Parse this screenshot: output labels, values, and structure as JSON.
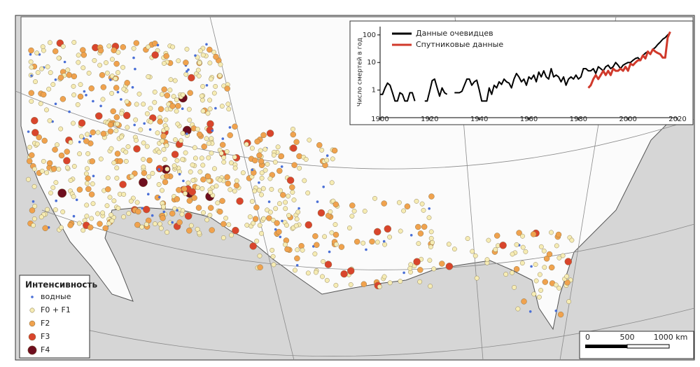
{
  "chart_data": {
    "type": "line",
    "y_label": "Число смертей в год",
    "log_y": true,
    "legend": "top-left",
    "xlim": [
      1900,
      2020
    ],
    "xticks": [
      1900,
      1920,
      1940,
      1960,
      1980,
      2000,
      2020
    ],
    "ylim": [
      0.1,
      200
    ],
    "yticks": [
      1,
      10,
      100
    ],
    "x": [
      1900,
      1901,
      1902,
      1903,
      1904,
      1905,
      1906,
      1907,
      1908,
      1909,
      1910,
      1911,
      1912,
      1913,
      1914,
      1915,
      1916,
      1917,
      1918,
      1919,
      1920,
      1921,
      1922,
      1923,
      1924,
      1925,
      1926,
      1927,
      1928,
      1929,
      1930,
      1931,
      1932,
      1933,
      1934,
      1935,
      1936,
      1937,
      1938,
      1939,
      1940,
      1941,
      1942,
      1943,
      1944,
      1945,
      1946,
      1947,
      1948,
      1949,
      1950,
      1951,
      1952,
      1953,
      1954,
      1955,
      1956,
      1957,
      1958,
      1959,
      1960,
      1961,
      1962,
      1963,
      1964,
      1965,
      1966,
      1967,
      1968,
      1969,
      1970,
      1971,
      1972,
      1973,
      1974,
      1975,
      1976,
      1977,
      1978,
      1979,
      1980,
      1981,
      1982,
      1983,
      1984,
      1985,
      1986,
      1987,
      1988,
      1989,
      1990,
      1991,
      1992,
      1993,
      1994,
      1995,
      1996,
      1997,
      1998,
      1999,
      2000,
      2001,
      2002,
      2003,
      2004,
      2005,
      2006,
      2007,
      2008,
      2009,
      2010,
      2011,
      2012,
      2013,
      2014,
      2015,
      2016,
      2017
    ],
    "series": [
      {
        "name": "Данные очевидцев",
        "color": "#000000",
        "values": [
          0.7,
          0.7,
          1.2,
          1.8,
          1.5,
          0.8,
          0.4,
          0.4,
          0.8,
          0.7,
          0.4,
          0.4,
          0.8,
          0.8,
          0.4,
          null,
          null,
          null,
          0.4,
          0.4,
          0.9,
          2.2,
          2.5,
          1.2,
          0.6,
          1.2,
          0.8,
          0.7,
          null,
          null,
          0.8,
          0.8,
          0.8,
          0.9,
          1.5,
          2.5,
          2.5,
          1.5,
          2.0,
          2.3,
          1.0,
          0.4,
          0.4,
          0.4,
          1.2,
          0.7,
          1.5,
          1.2,
          2.0,
          1.6,
          2.5,
          2.0,
          1.8,
          1.2,
          2.5,
          4.0,
          3.0,
          2.0,
          2.5,
          1.5,
          3.0,
          2.5,
          3.5,
          2.0,
          4.5,
          3.0,
          5,
          3,
          2.5,
          6,
          3,
          3.5,
          3,
          2,
          3,
          1.5,
          2.5,
          3,
          2.5,
          3.5,
          2.5,
          3,
          6,
          6,
          5,
          5,
          6,
          4,
          7,
          6,
          5,
          7,
          8,
          6,
          7,
          10,
          8,
          6,
          8,
          9,
          10,
          10,
          12,
          14,
          15,
          12,
          18,
          22,
          25,
          20,
          30,
          35,
          45,
          55,
          70,
          80,
          100,
          120
        ]
      },
      {
        "name": "Спутниковые данные",
        "color": "#d0392b",
        "values": [
          null,
          null,
          null,
          null,
          null,
          null,
          null,
          null,
          null,
          null,
          null,
          null,
          null,
          null,
          null,
          null,
          null,
          null,
          null,
          null,
          null,
          null,
          null,
          null,
          null,
          null,
          null,
          null,
          null,
          null,
          null,
          null,
          null,
          null,
          null,
          null,
          null,
          null,
          null,
          null,
          null,
          null,
          null,
          null,
          null,
          null,
          null,
          null,
          null,
          null,
          null,
          null,
          null,
          null,
          null,
          null,
          null,
          null,
          null,
          null,
          null,
          null,
          null,
          null,
          null,
          null,
          null,
          null,
          null,
          null,
          null,
          null,
          null,
          null,
          null,
          null,
          null,
          null,
          null,
          null,
          null,
          null,
          null,
          null,
          1.2,
          1.5,
          2.5,
          3.5,
          2.5,
          3.5,
          5,
          3.5,
          5,
          3.5,
          6,
          5,
          5,
          6,
          5,
          7,
          5,
          9,
          8,
          10,
          12,
          12,
          18,
          14,
          25,
          20,
          30,
          25,
          22,
          20,
          15,
          15,
          80,
          130
        ]
      }
    ]
  },
  "map": {
    "legend": {
      "title": "Интенсивность",
      "items": [
        {
          "label": "водные",
          "color": "#4a6fd6"
        },
        {
          "label": "F0 + F1",
          "color": "#f6ecb4"
        },
        {
          "label": "F2",
          "color": "#f0a24e"
        },
        {
          "label": "F3",
          "color": "#d9452c"
        },
        {
          "label": "F4",
          "color": "#6e0e1e"
        }
      ]
    },
    "scale": {
      "labels": [
        "0",
        "500",
        "1000 km"
      ]
    }
  }
}
